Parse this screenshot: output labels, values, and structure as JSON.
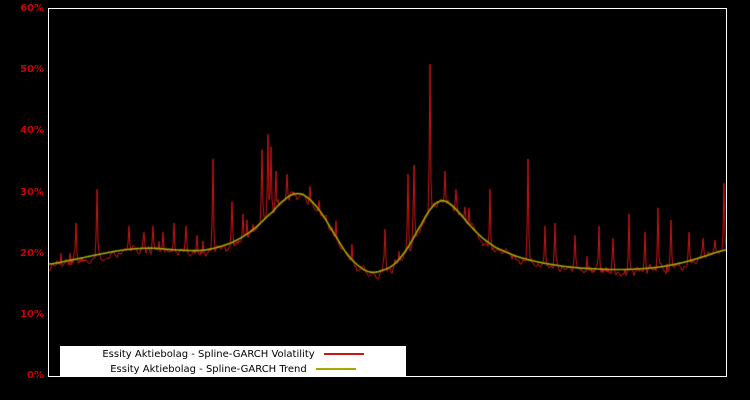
{
  "chart_data": {
    "type": "line",
    "title": "",
    "xlabel": "",
    "ylabel": "",
    "ylim": [
      0,
      60
    ],
    "yticks": [
      0,
      10,
      20,
      30,
      40,
      50,
      60
    ],
    "ytick_suffix": "%",
    "grid": false,
    "legend_position": "bottom-left",
    "background_color": "#000000",
    "plot_border_color": "#ffffff",
    "axis_label_color": "#cc0000",
    "series": [
      {
        "name": "Essity Aktiebolag - Spline-GARCH Volatility",
        "color": "#cc1616",
        "style": "noisy-line",
        "follows": "trend-baseline",
        "noise_amplitude_pct": 1.2,
        "spikes": [
          [
            0.04,
            25.0
          ],
          [
            0.071,
            30.5
          ],
          [
            0.118,
            24.5
          ],
          [
            0.14,
            23.5
          ],
          [
            0.153,
            24.5
          ],
          [
            0.169,
            23.5
          ],
          [
            0.184,
            25.0
          ],
          [
            0.203,
            24.5
          ],
          [
            0.218,
            23.0
          ],
          [
            0.242,
            35.5
          ],
          [
            0.271,
            28.5
          ],
          [
            0.287,
            26.5
          ],
          [
            0.315,
            37.0
          ],
          [
            0.323,
            39.5
          ],
          [
            0.328,
            37.5
          ],
          [
            0.336,
            33.5
          ],
          [
            0.352,
            33.0
          ],
          [
            0.386,
            31.0
          ],
          [
            0.403,
            26.5
          ],
          [
            0.448,
            21.5
          ],
          [
            0.496,
            24.0
          ],
          [
            0.53,
            33.0
          ],
          [
            0.539,
            34.5
          ],
          [
            0.563,
            51.0
          ],
          [
            0.585,
            33.5
          ],
          [
            0.601,
            30.5
          ],
          [
            0.621,
            27.5
          ],
          [
            0.651,
            30.5
          ],
          [
            0.708,
            35.5
          ],
          [
            0.732,
            24.5
          ],
          [
            0.748,
            25.0
          ],
          [
            0.777,
            23.0
          ],
          [
            0.813,
            24.5
          ],
          [
            0.833,
            22.5
          ],
          [
            0.857,
            26.5
          ],
          [
            0.88,
            23.5
          ],
          [
            0.9,
            27.5
          ],
          [
            0.919,
            25.5
          ],
          [
            0.945,
            23.5
          ],
          [
            0.966,
            22.5
          ],
          [
            0.997,
            31.5
          ]
        ]
      },
      {
        "name": "Essity Aktiebolag - Spline-GARCH Trend",
        "color": "#a8a800",
        "style": "smooth-line",
        "points": [
          [
            0.0,
            18.3
          ],
          [
            0.03,
            18.9
          ],
          [
            0.07,
            19.8
          ],
          [
            0.11,
            20.6
          ],
          [
            0.15,
            20.9
          ],
          [
            0.19,
            20.6
          ],
          [
            0.23,
            20.6
          ],
          [
            0.27,
            21.8
          ],
          [
            0.3,
            23.8
          ],
          [
            0.33,
            26.8
          ],
          [
            0.35,
            29.0
          ],
          [
            0.365,
            29.8
          ],
          [
            0.38,
            29.3
          ],
          [
            0.4,
            27.0
          ],
          [
            0.42,
            23.5
          ],
          [
            0.44,
            20.0
          ],
          [
            0.46,
            17.8
          ],
          [
            0.475,
            17.0
          ],
          [
            0.49,
            17.2
          ],
          [
            0.51,
            18.3
          ],
          [
            0.53,
            21.0
          ],
          [
            0.55,
            24.8
          ],
          [
            0.565,
            27.5
          ],
          [
            0.578,
            28.6
          ],
          [
            0.59,
            28.3
          ],
          [
            0.605,
            26.8
          ],
          [
            0.62,
            24.8
          ],
          [
            0.64,
            22.6
          ],
          [
            0.66,
            21.0
          ],
          [
            0.69,
            19.6
          ],
          [
            0.72,
            18.7
          ],
          [
            0.75,
            18.1
          ],
          [
            0.78,
            17.7
          ],
          [
            0.81,
            17.5
          ],
          [
            0.84,
            17.4
          ],
          [
            0.87,
            17.5
          ],
          [
            0.9,
            17.8
          ],
          [
            0.93,
            18.4
          ],
          [
            0.96,
            19.3
          ],
          [
            1.0,
            20.6
          ]
        ]
      }
    ]
  }
}
